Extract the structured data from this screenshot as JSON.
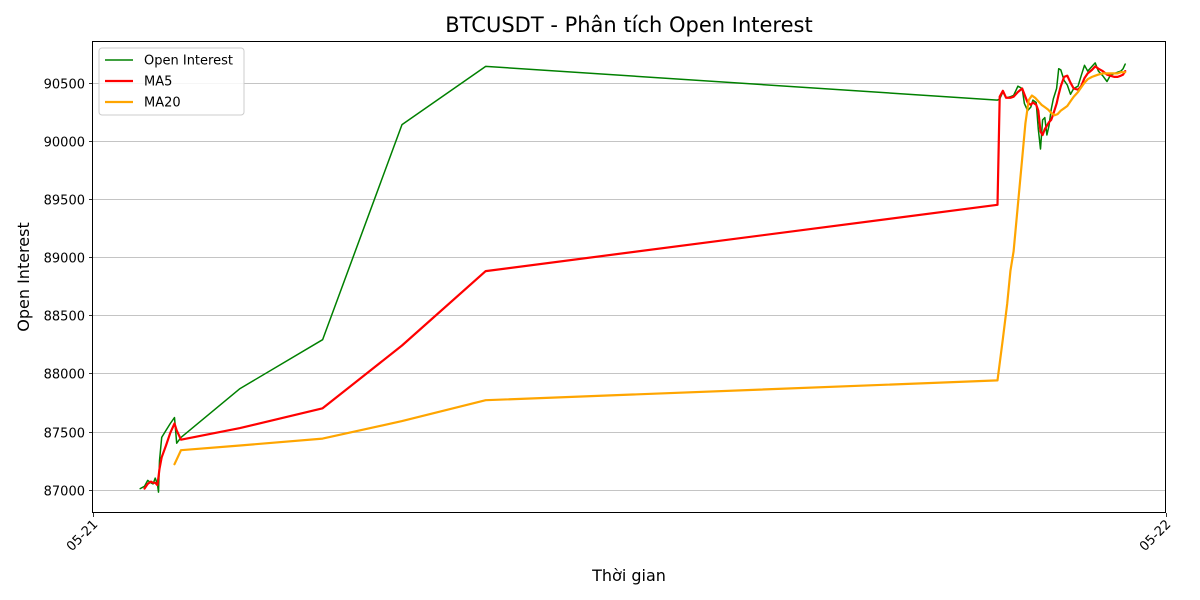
{
  "chart_data": {
    "type": "line",
    "title": "BTCUSDT - Phân tích Open Interest",
    "xlabel": "Thời gian",
    "ylabel": "Open Interest",
    "xlim": [
      0,
      1
    ],
    "ylim": [
      86800,
      90850
    ],
    "x_ticks": [
      {
        "x": 0,
        "label": "05-21"
      },
      {
        "x": 1,
        "label": "05-22"
      }
    ],
    "y_ticks": [
      87000,
      87500,
      88000,
      88500,
      89000,
      89500,
      90000,
      90500
    ],
    "grid": "horizontal",
    "legend_position": "top-left",
    "series": [
      {
        "name": "Open Interest",
        "color": "#008000",
        "width": 1.5,
        "points": [
          [
            0.044,
            87010
          ],
          [
            0.048,
            87030
          ],
          [
            0.051,
            87080
          ],
          [
            0.054,
            87060
          ],
          [
            0.056,
            87050
          ],
          [
            0.058,
            87100
          ],
          [
            0.06,
            87050
          ],
          [
            0.061,
            86980
          ],
          [
            0.062,
            87250
          ],
          [
            0.064,
            87450
          ],
          [
            0.068,
            87510
          ],
          [
            0.072,
            87570
          ],
          [
            0.076,
            87620
          ],
          [
            0.078,
            87400
          ],
          [
            0.082,
            87450
          ],
          [
            0.137,
            87870
          ],
          [
            0.214,
            88290
          ],
          [
            0.288,
            90140
          ],
          [
            0.366,
            90640
          ],
          [
            0.843,
            90350
          ],
          [
            0.845,
            90360
          ],
          [
            0.848,
            90420
          ],
          [
            0.851,
            90370
          ],
          [
            0.855,
            90380
          ],
          [
            0.858,
            90390
          ],
          [
            0.862,
            90470
          ],
          [
            0.866,
            90450
          ],
          [
            0.868,
            90320
          ],
          [
            0.871,
            90260
          ],
          [
            0.874,
            90290
          ],
          [
            0.876,
            90350
          ],
          [
            0.879,
            90330
          ],
          [
            0.881,
            90100
          ],
          [
            0.883,
            89930
          ],
          [
            0.885,
            90180
          ],
          [
            0.887,
            90200
          ],
          [
            0.889,
            90050
          ],
          [
            0.891,
            90130
          ],
          [
            0.893,
            90270
          ],
          [
            0.895,
            90360
          ],
          [
            0.898,
            90450
          ],
          [
            0.9,
            90620
          ],
          [
            0.902,
            90610
          ],
          [
            0.905,
            90520
          ],
          [
            0.908,
            90480
          ],
          [
            0.911,
            90400
          ],
          [
            0.914,
            90450
          ],
          [
            0.918,
            90470
          ],
          [
            0.921,
            90560
          ],
          [
            0.924,
            90650
          ],
          [
            0.927,
            90600
          ],
          [
            0.931,
            90640
          ],
          [
            0.934,
            90670
          ],
          [
            0.937,
            90600
          ],
          [
            0.941,
            90560
          ],
          [
            0.945,
            90510
          ],
          [
            0.948,
            90560
          ],
          [
            0.952,
            90580
          ],
          [
            0.955,
            90590
          ],
          [
            0.958,
            90600
          ],
          [
            0.96,
            90620
          ],
          [
            0.962,
            90660
          ]
        ]
      },
      {
        "name": "MA5",
        "color": "#ff0000",
        "width": 2.2,
        "points": [
          [
            0.048,
            87010
          ],
          [
            0.051,
            87050
          ],
          [
            0.054,
            87070
          ],
          [
            0.056,
            87060
          ],
          [
            0.058,
            87060
          ],
          [
            0.06,
            87040
          ],
          [
            0.061,
            87110
          ],
          [
            0.062,
            87180
          ],
          [
            0.064,
            87280
          ],
          [
            0.068,
            87380
          ],
          [
            0.072,
            87490
          ],
          [
            0.076,
            87570
          ],
          [
            0.078,
            87510
          ],
          [
            0.082,
            87430
          ],
          [
            0.137,
            87530
          ],
          [
            0.214,
            87700
          ],
          [
            0.288,
            88240
          ],
          [
            0.366,
            88880
          ],
          [
            0.843,
            89450
          ],
          [
            0.845,
            90380
          ],
          [
            0.848,
            90430
          ],
          [
            0.851,
            90370
          ],
          [
            0.855,
            90370
          ],
          [
            0.858,
            90380
          ],
          [
            0.862,
            90420
          ],
          [
            0.866,
            90450
          ],
          [
            0.868,
            90400
          ],
          [
            0.871,
            90330
          ],
          [
            0.874,
            90310
          ],
          [
            0.876,
            90330
          ],
          [
            0.879,
            90310
          ],
          [
            0.881,
            90260
          ],
          [
            0.883,
            90080
          ],
          [
            0.885,
            90050
          ],
          [
            0.887,
            90100
          ],
          [
            0.889,
            90130
          ],
          [
            0.891,
            90160
          ],
          [
            0.893,
            90180
          ],
          [
            0.895,
            90230
          ],
          [
            0.898,
            90320
          ],
          [
            0.9,
            90400
          ],
          [
            0.902,
            90470
          ],
          [
            0.905,
            90550
          ],
          [
            0.908,
            90560
          ],
          [
            0.911,
            90500
          ],
          [
            0.914,
            90450
          ],
          [
            0.918,
            90440
          ],
          [
            0.921,
            90470
          ],
          [
            0.924,
            90540
          ],
          [
            0.927,
            90580
          ],
          [
            0.931,
            90610
          ],
          [
            0.934,
            90640
          ],
          [
            0.937,
            90620
          ],
          [
            0.941,
            90600
          ],
          [
            0.945,
            90570
          ],
          [
            0.948,
            90560
          ],
          [
            0.952,
            90550
          ],
          [
            0.955,
            90550
          ],
          [
            0.958,
            90560
          ],
          [
            0.96,
            90570
          ],
          [
            0.962,
            90600
          ]
        ]
      },
      {
        "name": "MA20",
        "color": "#ffa500",
        "width": 2.2,
        "points": [
          [
            0.076,
            87220
          ],
          [
            0.082,
            87340
          ],
          [
            0.137,
            87380
          ],
          [
            0.214,
            87440
          ],
          [
            0.288,
            87590
          ],
          [
            0.366,
            87770
          ],
          [
            0.843,
            87940
          ],
          [
            0.848,
            88300
          ],
          [
            0.852,
            88600
          ],
          [
            0.855,
            88880
          ],
          [
            0.858,
            89050
          ],
          [
            0.862,
            89450
          ],
          [
            0.866,
            89850
          ],
          [
            0.869,
            90150
          ],
          [
            0.872,
            90350
          ],
          [
            0.875,
            90390
          ],
          [
            0.878,
            90370
          ],
          [
            0.881,
            90340
          ],
          [
            0.884,
            90310
          ],
          [
            0.887,
            90290
          ],
          [
            0.89,
            90270
          ],
          [
            0.893,
            90240
          ],
          [
            0.896,
            90220
          ],
          [
            0.899,
            90230
          ],
          [
            0.902,
            90260
          ],
          [
            0.905,
            90280
          ],
          [
            0.908,
            90300
          ],
          [
            0.911,
            90340
          ],
          [
            0.914,
            90380
          ],
          [
            0.918,
            90420
          ],
          [
            0.921,
            90460
          ],
          [
            0.924,
            90500
          ],
          [
            0.927,
            90530
          ],
          [
            0.931,
            90550
          ],
          [
            0.934,
            90560
          ],
          [
            0.937,
            90570
          ],
          [
            0.941,
            90580
          ],
          [
            0.945,
            90580
          ],
          [
            0.948,
            90580
          ],
          [
            0.952,
            90580
          ],
          [
            0.955,
            90580
          ],
          [
            0.958,
            90590
          ],
          [
            0.962,
            90590
          ]
        ]
      }
    ]
  }
}
